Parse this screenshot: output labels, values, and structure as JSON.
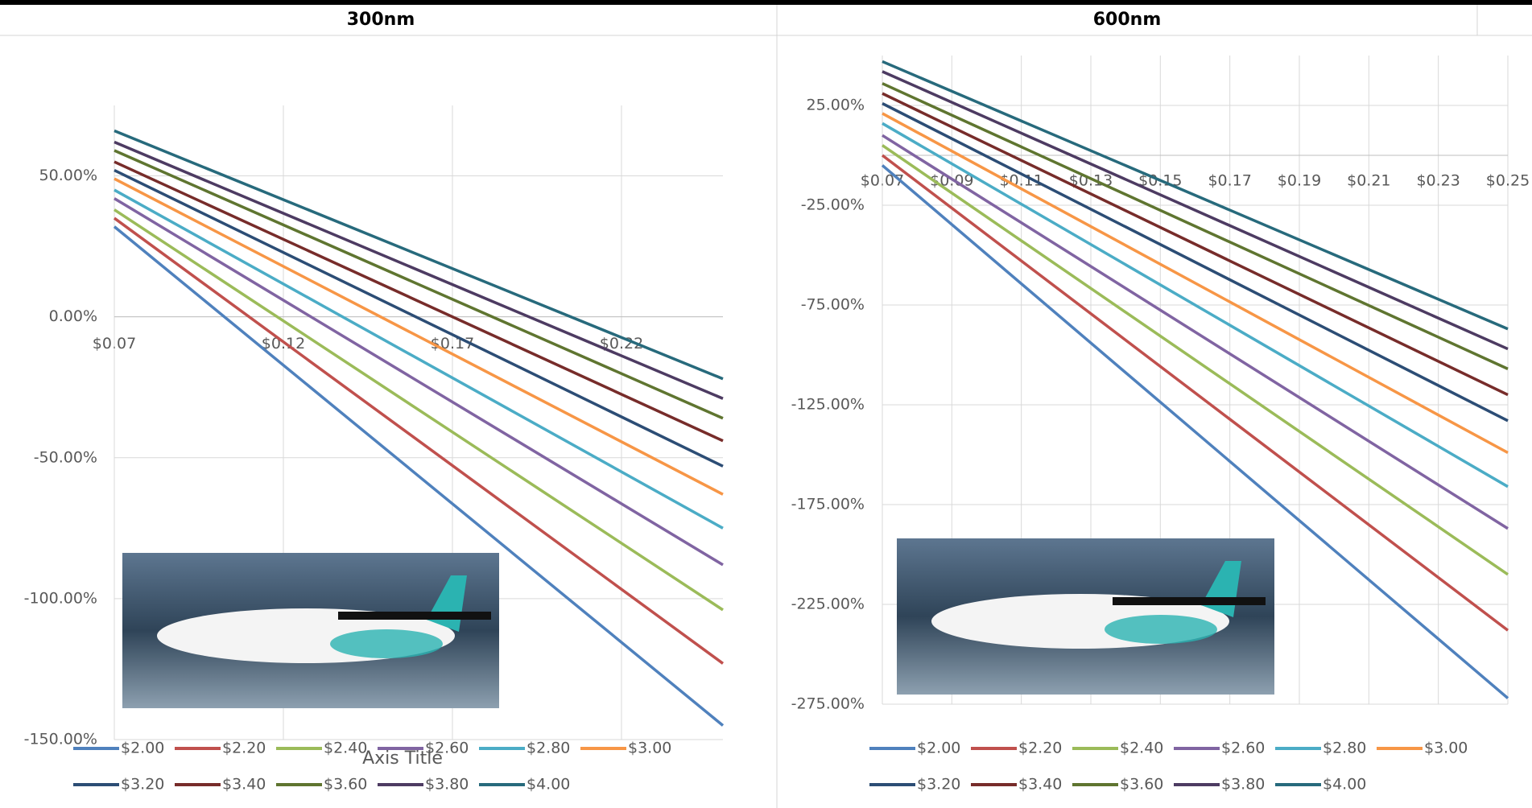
{
  "chart_data": [
    {
      "type": "line",
      "title": "300nm",
      "x_axis_title": "Axis Title",
      "x": [
        0.07,
        0.25
      ],
      "xlim": [
        0.07,
        0.25
      ],
      "xticks": [
        {
          "value": 0.07,
          "label": "$0.07"
        },
        {
          "value": 0.12,
          "label": "$0.12"
        },
        {
          "value": 0.17,
          "label": "$0.17"
        },
        {
          "value": 0.22,
          "label": "$0.22"
        }
      ],
      "ylim": [
        -150,
        75
      ],
      "yticks": [
        {
          "value": -150,
          "label": "-150.00%"
        },
        {
          "value": -100,
          "label": "-100.00%"
        },
        {
          "value": -50,
          "label": "-50.00%"
        },
        {
          "value": 0,
          "label": "0.00%"
        },
        {
          "value": 50,
          "label": "50.00%"
        }
      ],
      "grid": true,
      "legend": "bottom",
      "series": [
        {
          "name": "$2.00",
          "color": "#4f81bd",
          "values": [
            32,
            -145
          ]
        },
        {
          "name": "$2.20",
          "color": "#c0504d",
          "values": [
            35,
            -123
          ]
        },
        {
          "name": "$2.40",
          "color": "#9bbb59",
          "values": [
            38,
            -104
          ]
        },
        {
          "name": "$2.60",
          "color": "#8064a2",
          "values": [
            42,
            -88
          ]
        },
        {
          "name": "$2.80",
          "color": "#4bacc6",
          "values": [
            45,
            -75
          ]
        },
        {
          "name": "$3.00",
          "color": "#f79646",
          "values": [
            49,
            -63
          ]
        },
        {
          "name": "$3.20",
          "color": "#2c4d75",
          "values": [
            52,
            -53
          ]
        },
        {
          "name": "$3.40",
          "color": "#772c2a",
          "values": [
            55,
            -44
          ]
        },
        {
          "name": "$3.60",
          "color": "#5f7530",
          "values": [
            59,
            -36
          ]
        },
        {
          "name": "$3.80",
          "color": "#4d3b62",
          "values": [
            62,
            -29
          ]
        },
        {
          "name": "$4.00",
          "color": "#276a7c",
          "values": [
            66,
            -22
          ]
        }
      ]
    },
    {
      "type": "line",
      "title": "600nm",
      "x": [
        0.07,
        0.25
      ],
      "xlim": [
        0.07,
        0.25
      ],
      "xticks": [
        {
          "value": 0.07,
          "label": "$0.07"
        },
        {
          "value": 0.09,
          "label": "$0.09"
        },
        {
          "value": 0.11,
          "label": "$0.11"
        },
        {
          "value": 0.13,
          "label": "$0.13"
        },
        {
          "value": 0.15,
          "label": "$0.15"
        },
        {
          "value": 0.17,
          "label": "$0.17"
        },
        {
          "value": 0.19,
          "label": "$0.19"
        },
        {
          "value": 0.21,
          "label": "$0.21"
        },
        {
          "value": 0.23,
          "label": "$0.23"
        },
        {
          "value": 0.25,
          "label": "$0.25"
        }
      ],
      "ylim": [
        -275,
        50
      ],
      "yticks": [
        {
          "value": -275,
          "label": "-275.00%"
        },
        {
          "value": -225,
          "label": "-225.00%"
        },
        {
          "value": -175,
          "label": "-175.00%"
        },
        {
          "value": -125,
          "label": "-125.00%"
        },
        {
          "value": -75,
          "label": "-75.00%"
        },
        {
          "value": -25,
          "label": "-25.00%"
        },
        {
          "value": 25,
          "label": "25.00%"
        }
      ],
      "grid": true,
      "legend": "bottom",
      "series": [
        {
          "name": "$2.00",
          "color": "#4f81bd",
          "values": [
            -5,
            -272
          ]
        },
        {
          "name": "$2.20",
          "color": "#c0504d",
          "values": [
            0,
            -238
          ]
        },
        {
          "name": "$2.40",
          "color": "#9bbb59",
          "values": [
            5,
            -210
          ]
        },
        {
          "name": "$2.60",
          "color": "#8064a2",
          "values": [
            10,
            -187
          ]
        },
        {
          "name": "$2.80",
          "color": "#4bacc6",
          "values": [
            16,
            -166
          ]
        },
        {
          "name": "$3.00",
          "color": "#f79646",
          "values": [
            21,
            -149
          ]
        },
        {
          "name": "$3.20",
          "color": "#2c4d75",
          "values": [
            26,
            -133
          ]
        },
        {
          "name": "$3.40",
          "color": "#772c2a",
          "values": [
            31,
            -120
          ]
        },
        {
          "name": "$3.60",
          "color": "#5f7530",
          "values": [
            36,
            -107
          ]
        },
        {
          "name": "$3.80",
          "color": "#4d3b62",
          "values": [
            42,
            -97
          ]
        },
        {
          "name": "$4.00",
          "color": "#276a7c",
          "values": [
            47,
            -87
          ]
        }
      ]
    }
  ]
}
